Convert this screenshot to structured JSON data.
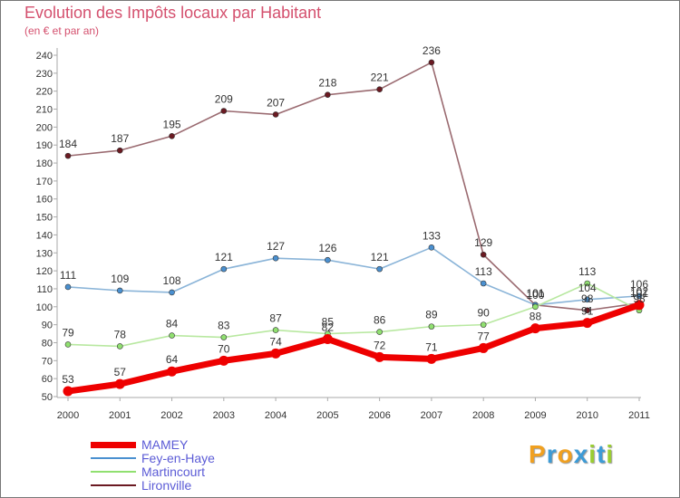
{
  "header": {
    "title": "Evolution des Impôts locaux par Habitant",
    "subtitle": "(en € et par an)"
  },
  "brand": {
    "letters": [
      "P",
      "r",
      "o",
      "x",
      "i",
      "t",
      "i"
    ],
    "colors": [
      "#f0a020",
      "#3d9bd6",
      "#f0a020",
      "#3d9bd6",
      "#9acd32",
      "#3d9bd6",
      "#9acd32"
    ]
  },
  "chart_data": {
    "type": "line",
    "x": [
      "2000",
      "2001",
      "2002",
      "2003",
      "2004",
      "2005",
      "2006",
      "2007",
      "2008",
      "2009",
      "2010",
      "2011"
    ],
    "ylim": [
      50,
      240
    ],
    "ytick_step": 10,
    "grid": false,
    "legend_position": "bottom-left",
    "series": [
      {
        "name": "MAMEY",
        "color": "#ee0000",
        "values": [
          53,
          57,
          64,
          70,
          74,
          82,
          72,
          71,
          77,
          88,
          91,
          101
        ],
        "labels": [
          "53",
          "57",
          "64",
          "70",
          "74",
          "82",
          "72",
          "71",
          "77",
          "88",
          "91",
          "101"
        ]
      },
      {
        "name": "Fey-en-Haye",
        "color": "#4a90d0",
        "values": [
          111,
          109,
          108,
          121,
          127,
          126,
          121,
          133,
          113,
          101,
          104,
          106
        ],
        "labels": [
          "111",
          "109",
          "108",
          "121",
          "127",
          "126",
          "121",
          "133",
          "113",
          "101",
          "104",
          "106"
        ]
      },
      {
        "name": "Martincourt",
        "color": "#90e070",
        "values": [
          79,
          78,
          84,
          83,
          87,
          85,
          86,
          89,
          90,
          100,
          113,
          98
        ],
        "labels": [
          "79",
          "78",
          "84",
          "83",
          "87",
          "85",
          "86",
          "89",
          "90",
          "100",
          "113",
          "98"
        ]
      },
      {
        "name": "Lironville",
        "color": "#6b1a22",
        "values": [
          184,
          187,
          195,
          209,
          207,
          218,
          221,
          236,
          129,
          101,
          98,
          102
        ],
        "labels": [
          "184",
          "187",
          "195",
          "209",
          "207",
          "218",
          "221",
          "236",
          "129",
          "101",
          "98",
          "102"
        ]
      }
    ]
  }
}
